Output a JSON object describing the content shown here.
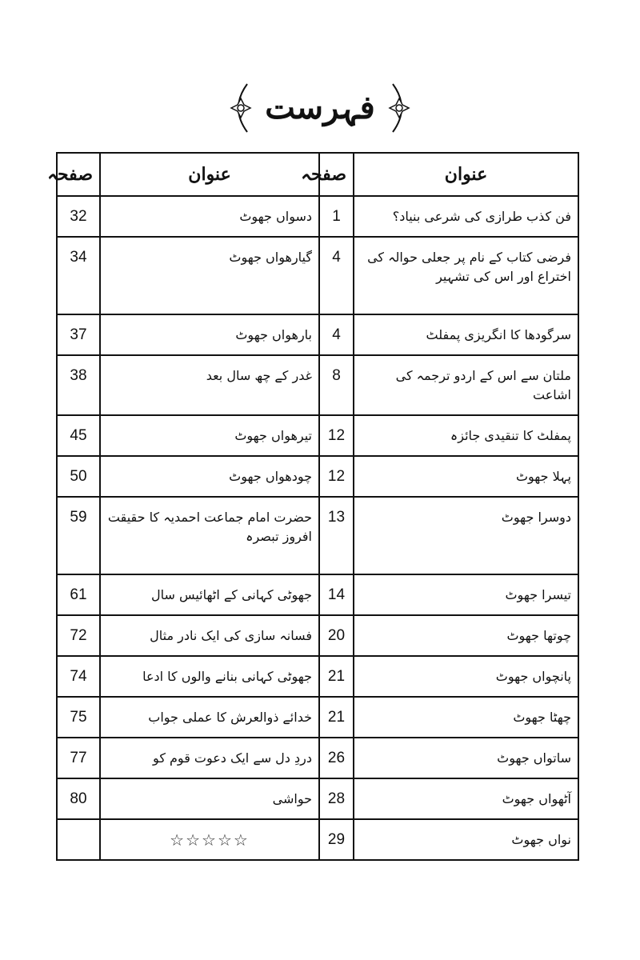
{
  "title": "فہرست",
  "headers": {
    "title": "عنوان",
    "page": "صفحہ"
  },
  "rows": [
    {
      "right_title": "فن کذب طرازی کی شرعی بنیاد؟",
      "right_page": "1",
      "left_title": "دسواں جھوٹ",
      "left_page": "32"
    },
    {
      "right_title": "فرضی کتاب کے نام پر جعلی حوالہ کی اختراع اور اس کی تشہیر",
      "right_page": "4",
      "left_title": "گیارھواں جھوٹ",
      "left_page": "34"
    },
    {
      "right_title": "سرگودھا کا انگریزی پمفلٹ",
      "right_page": "4",
      "left_title": "بارھواں جھوٹ",
      "left_page": "37"
    },
    {
      "right_title": "ملتان سے اس کے اردو ترجمہ کی اشاعت",
      "right_page": "8",
      "left_title": "غدر کے چھ سال بعد",
      "left_page": "38"
    },
    {
      "right_title": "پمفلٹ کا تنقیدی جائزہ",
      "right_page": "12",
      "left_title": "تیرھواں جھوٹ",
      "left_page": "45"
    },
    {
      "right_title": "پہلا جھوٹ",
      "right_page": "12",
      "left_title": "چودھواں جھوٹ",
      "left_page": "50"
    },
    {
      "right_title": "دوسرا جھوٹ",
      "right_page": "13",
      "left_title": "حضرت امام جماعت احمدیہ کا حقیقت افروز تبصرہ",
      "left_page": "59"
    },
    {
      "right_title": "تیسرا جھوٹ",
      "right_page": "14",
      "left_title": "جھوٹی کہانی کے اٹھائیس سال",
      "left_page": "61"
    },
    {
      "right_title": "چوتھا جھوٹ",
      "right_page": "20",
      "left_title": "فسانہ سازی کی ایک نادر مثال",
      "left_page": "72"
    },
    {
      "right_title": "پانچواں جھوٹ",
      "right_page": "21",
      "left_title": "جھوٹی کہانی بنانے والوں کا ادعا",
      "left_page": "74"
    },
    {
      "right_title": "چھٹا جھوٹ",
      "right_page": "21",
      "left_title": "خدائے ذوالعرش کا عملی جواب",
      "left_page": "75"
    },
    {
      "right_title": "ساتواں جھوٹ",
      "right_page": "26",
      "left_title": "دردِ دل سے ایک دعوت قوم کو",
      "left_page": "77"
    },
    {
      "right_title": "آٹھواں جھوٹ",
      "right_page": "28",
      "left_title": "حواشی",
      "left_page": "80"
    },
    {
      "right_title": "نواں جھوٹ",
      "right_page": "29",
      "left_title": "☆☆☆☆☆",
      "left_page": ""
    }
  ]
}
